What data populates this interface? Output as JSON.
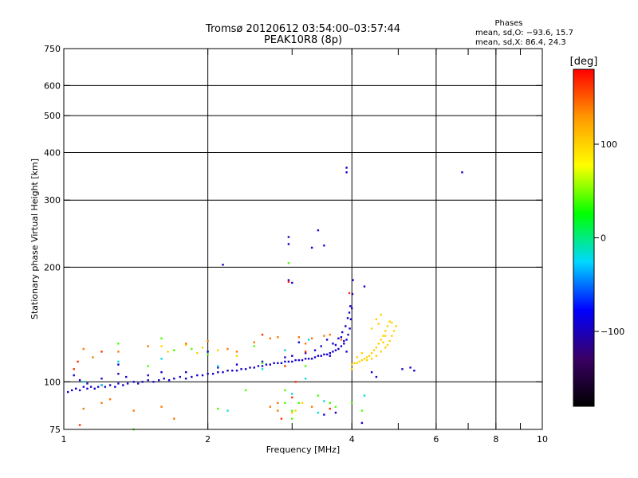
{
  "chart_data": {
    "type": "scatter",
    "title": "Tromsø 20120612 03:54:00–03:57:44",
    "subtitle": "PEAK10R8 (8p)",
    "xlabel": "Frequency [MHz]",
    "ylabel": "Stationary phase Virtual Height [km]",
    "x_scale": "log",
    "y_scale": "log",
    "xlim": [
      1,
      10
    ],
    "ylim": [
      75,
      750
    ],
    "x_ticks": [
      1,
      2,
      4,
      6,
      8,
      10
    ],
    "x_tick_labels": [
      "1",
      "2",
      "4",
      "6",
      "8",
      "10"
    ],
    "y_ticks": [
      75,
      100,
      200,
      300,
      400,
      500,
      600,
      750
    ],
    "y_tick_labels": [
      "75",
      "100",
      "200",
      "300",
      "400",
      "500",
      "600",
      "750"
    ],
    "grid": true,
    "phase_stats": {
      "heading": "Phases",
      "o_line": "mean, sd,O: −93.6, 15.7",
      "x_line": "mean, sd,X: 86.4, 24.3"
    },
    "colorbar": {
      "label": "[deg]",
      "range": [
        -180,
        180
      ],
      "ticks": [
        100,
        0,
        -100
      ],
      "tick_labels": [
        "100",
        "0",
        "−100"
      ],
      "colors": [
        "#000000",
        "#3a0066",
        "#0000ff",
        "#00d8ff",
        "#00ff00",
        "#ffff00",
        "#ff9900",
        "#ff0000"
      ]
    },
    "series": [
      {
        "phase": -95,
        "points": [
          [
            1.02,
            94
          ],
          [
            1.04,
            95
          ],
          [
            1.06,
            96
          ],
          [
            1.08,
            95
          ],
          [
            1.1,
            97
          ],
          [
            1.12,
            96
          ],
          [
            1.14,
            97
          ],
          [
            1.16,
            96
          ],
          [
            1.18,
            97
          ],
          [
            1.2,
            98
          ],
          [
            1.22,
            97
          ],
          [
            1.25,
            98
          ],
          [
            1.28,
            97
          ],
          [
            1.3,
            99
          ],
          [
            1.33,
            98
          ],
          [
            1.36,
            99
          ],
          [
            1.4,
            100
          ],
          [
            1.43,
            99
          ],
          [
            1.46,
            100
          ],
          [
            1.5,
            101
          ],
          [
            1.54,
            100
          ],
          [
            1.58,
            101
          ],
          [
            1.62,
            102
          ],
          [
            1.66,
            101
          ],
          [
            1.7,
            102
          ],
          [
            1.75,
            103
          ],
          [
            1.8,
            102
          ],
          [
            1.85,
            103
          ],
          [
            1.9,
            104
          ],
          [
            1.95,
            104
          ],
          [
            2.0,
            105
          ],
          [
            2.05,
            105
          ],
          [
            2.1,
            106
          ],
          [
            2.15,
            106
          ],
          [
            2.2,
            107
          ],
          [
            2.25,
            107
          ],
          [
            2.3,
            107
          ],
          [
            2.35,
            108
          ],
          [
            2.4,
            108
          ],
          [
            2.45,
            109
          ],
          [
            2.5,
            109
          ],
          [
            2.55,
            110
          ],
          [
            2.6,
            110
          ],
          [
            2.65,
            111
          ],
          [
            2.7,
            111
          ],
          [
            2.75,
            112
          ],
          [
            2.8,
            112
          ],
          [
            2.85,
            112
          ],
          [
            2.9,
            113
          ],
          [
            2.95,
            113
          ],
          [
            3.0,
            113
          ],
          [
            3.05,
            114
          ],
          [
            3.1,
            114
          ],
          [
            3.15,
            114
          ],
          [
            3.2,
            115
          ],
          [
            3.25,
            115
          ],
          [
            3.3,
            115
          ],
          [
            3.35,
            116
          ],
          [
            3.4,
            117
          ],
          [
            3.45,
            117
          ],
          [
            3.5,
            118
          ],
          [
            3.55,
            118
          ],
          [
            3.6,
            119
          ],
          [
            3.65,
            120
          ],
          [
            3.7,
            121
          ],
          [
            3.75,
            122
          ],
          [
            3.8,
            124
          ],
          [
            3.85,
            126
          ],
          [
            3.9,
            129
          ],
          [
            3.93,
            133
          ],
          [
            3.96,
            138
          ],
          [
            3.98,
            146
          ],
          [
            4.0,
            156
          ],
          [
            4.01,
            170
          ],
          [
            4.02,
            185
          ],
          [
            1.05,
            104
          ],
          [
            1.08,
            101
          ],
          [
            1.12,
            99
          ],
          [
            1.2,
            102
          ],
          [
            1.35,
            103
          ],
          [
            1.6,
            106
          ],
          [
            2.3,
            111
          ],
          [
            2.9,
            116
          ],
          [
            3.6,
            117
          ],
          [
            3.7,
            125
          ],
          [
            3.75,
            130
          ],
          [
            3.82,
            135
          ],
          [
            3.88,
            140
          ],
          [
            3.92,
            147
          ],
          [
            3.95,
            152
          ],
          [
            3.97,
            158
          ],
          [
            3.9,
            120
          ],
          [
            3.85,
            128
          ],
          [
            3.8,
            131
          ],
          [
            3.65,
            126
          ],
          [
            3.55,
            129
          ],
          [
            3.45,
            124
          ],
          [
            3.35,
            121
          ],
          [
            1.3,
            111
          ],
          [
            1.5,
            104
          ],
          [
            1.8,
            106
          ],
          [
            2.1,
            109
          ],
          [
            2.6,
            113
          ],
          [
            3.0,
            117
          ],
          [
            3.2,
            119
          ],
          [
            4.4,
            106
          ],
          [
            4.5,
            103
          ],
          [
            5.1,
            108
          ],
          [
            5.3,
            109
          ],
          [
            5.4,
            107
          ],
          [
            3.9,
            365
          ],
          [
            3.9,
            355
          ],
          [
            6.8,
            355
          ],
          [
            3.4,
            250
          ],
          [
            3.3,
            225
          ],
          [
            3.5,
            228
          ],
          [
            2.95,
            240
          ],
          [
            2.95,
            230
          ],
          [
            2.15,
            203
          ],
          [
            2.95,
            185
          ],
          [
            3.0,
            182
          ],
          [
            4.25,
            178
          ],
          [
            3.1,
            127
          ],
          [
            1.3,
            105
          ],
          [
            2.0,
            120
          ],
          [
            3.5,
            82
          ],
          [
            3.7,
            83
          ],
          [
            4.2,
            78
          ]
        ]
      },
      {
        "phase": 100,
        "points": [
          [
            4.0,
            111
          ],
          [
            4.05,
            112
          ],
          [
            4.1,
            112
          ],
          [
            4.15,
            113
          ],
          [
            4.2,
            114
          ],
          [
            4.25,
            115
          ],
          [
            4.3,
            116
          ],
          [
            4.35,
            117
          ],
          [
            4.4,
            119
          ],
          [
            4.45,
            121
          ],
          [
            4.5,
            123
          ],
          [
            4.55,
            126
          ],
          [
            4.6,
            129
          ],
          [
            4.65,
            132
          ],
          [
            4.7,
            136
          ],
          [
            4.75,
            140
          ],
          [
            4.8,
            144
          ],
          [
            4.3,
            114
          ],
          [
            4.4,
            115
          ],
          [
            4.5,
            117
          ],
          [
            4.6,
            120
          ],
          [
            4.7,
            123
          ],
          [
            4.75,
            125
          ],
          [
            4.8,
            128
          ],
          [
            4.85,
            132
          ],
          [
            4.9,
            136
          ],
          [
            4.95,
            140
          ],
          [
            4.5,
            146
          ],
          [
            4.55,
            142
          ],
          [
            4.4,
            138
          ],
          [
            4.6,
            150
          ],
          [
            4.2,
            119
          ],
          [
            4.1,
            116
          ],
          [
            4.0,
            108
          ],
          [
            1.6,
            124
          ],
          [
            1.65,
            120
          ],
          [
            1.7,
            121
          ],
          [
            1.8,
            125
          ],
          [
            1.9,
            119
          ],
          [
            1.95,
            123
          ],
          [
            2.1,
            121
          ],
          [
            2.3,
            117
          ],
          [
            3.0,
            83
          ],
          [
            3.05,
            84
          ],
          [
            3.15,
            88
          ],
          [
            2.9,
            121
          ],
          [
            4.7,
            132
          ],
          [
            4.65,
            127
          ],
          [
            4.85,
            143
          ]
        ]
      },
      {
        "phase": 140,
        "points": [
          [
            1.1,
            122
          ],
          [
            1.3,
            120
          ],
          [
            1.5,
            124
          ],
          [
            1.8,
            126
          ],
          [
            2.0,
            128
          ],
          [
            2.2,
            122
          ],
          [
            2.3,
            120
          ],
          [
            2.5,
            127
          ],
          [
            2.7,
            130
          ],
          [
            2.8,
            131
          ],
          [
            3.1,
            131
          ],
          [
            3.2,
            126
          ],
          [
            3.5,
            132
          ],
          [
            3.6,
            133
          ],
          [
            3.8,
            129
          ],
          [
            3.3,
            130
          ],
          [
            1.15,
            116
          ],
          [
            1.25,
            90
          ],
          [
            1.1,
            85
          ],
          [
            1.2,
            88
          ],
          [
            1.4,
            84
          ],
          [
            1.6,
            86
          ],
          [
            2.7,
            86
          ],
          [
            2.8,
            88
          ],
          [
            3.3,
            86
          ],
          [
            1.7,
            80
          ],
          [
            2.8,
            84
          ]
        ]
      },
      {
        "phase": 40,
        "points": [
          [
            1.5,
            110
          ],
          [
            1.7,
            121
          ],
          [
            1.85,
            122
          ],
          [
            2.0,
            118
          ],
          [
            2.5,
            124
          ],
          [
            2.9,
            88
          ],
          [
            3.0,
            84
          ],
          [
            3.1,
            88
          ],
          [
            3.4,
            92
          ],
          [
            3.6,
            88
          ],
          [
            3.7,
            86
          ],
          [
            4.0,
            88
          ],
          [
            4.2,
            84
          ],
          [
            2.1,
            85
          ],
          [
            1.4,
            75
          ],
          [
            2.4,
            95
          ],
          [
            2.9,
            95
          ],
          [
            2.95,
            205
          ],
          [
            1.3,
            126
          ],
          [
            1.6,
            130
          ],
          [
            2.6,
            112
          ],
          [
            3.2,
            110
          ],
          [
            3.0,
            80
          ]
        ]
      },
      {
        "phase": 165,
        "points": [
          [
            1.07,
            113
          ],
          [
            1.2,
            120
          ],
          [
            2.6,
            133
          ],
          [
            3.0,
            91
          ],
          [
            3.05,
            100
          ],
          [
            2.95,
            183
          ],
          [
            3.95,
            171
          ],
          [
            2.85,
            80
          ],
          [
            3.6,
            85
          ],
          [
            1.08,
            77
          ],
          [
            1.05,
            108
          ],
          [
            2.9,
            110
          ],
          [
            3.2,
            120
          ]
        ]
      },
      {
        "phase": -20,
        "points": [
          [
            1.3,
            113
          ],
          [
            1.6,
            115
          ],
          [
            2.1,
            110
          ],
          [
            2.6,
            108
          ],
          [
            2.9,
            121
          ],
          [
            3.0,
            93
          ],
          [
            3.2,
            102
          ],
          [
            1.1,
            100
          ],
          [
            1.2,
            98
          ],
          [
            3.25,
            129
          ],
          [
            4.25,
            92
          ],
          [
            2.2,
            84
          ],
          [
            3.4,
            83
          ],
          [
            3.5,
            89
          ]
        ]
      }
    ]
  }
}
